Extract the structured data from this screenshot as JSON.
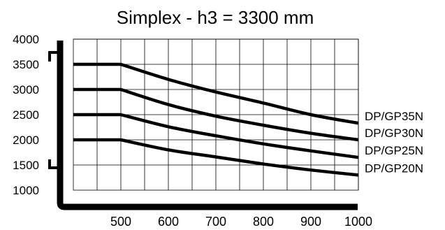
{
  "chart_data": {
    "type": "line",
    "title": "Simplex - h3 = 3300 mm",
    "xlabel": "",
    "ylabel": "",
    "x_ticks": [
      500,
      600,
      700,
      800,
      900,
      1000
    ],
    "y_ticks": [
      1000,
      1500,
      2000,
      2500,
      3000,
      3500,
      4000
    ],
    "xlim": [
      400,
      1000
    ],
    "ylim": [
      1000,
      4000
    ],
    "grid": true,
    "legend": "right",
    "series": [
      {
        "name": "DP/GP35N",
        "x": [
          400,
          500,
          600,
          700,
          800,
          900,
          1000
        ],
        "y": [
          3500,
          3500,
          3200,
          2950,
          2730,
          2500,
          2330
        ]
      },
      {
        "name": "DP/GP30N",
        "x": [
          400,
          500,
          600,
          700,
          800,
          900,
          1000
        ],
        "y": [
          3000,
          3000,
          2700,
          2470,
          2290,
          2130,
          2000
        ]
      },
      {
        "name": "DP/GP25N",
        "x": [
          400,
          500,
          600,
          700,
          800,
          900,
          1000
        ],
        "y": [
          2500,
          2500,
          2260,
          2080,
          1920,
          1780,
          1650
        ]
      },
      {
        "name": "DP/GP20N",
        "x": [
          400,
          500,
          600,
          700,
          800,
          900,
          1000
        ],
        "y": [
          2000,
          2000,
          1800,
          1660,
          1520,
          1400,
          1300
        ]
      }
    ],
    "colors": {
      "line": "#000000",
      "grid": "#000000",
      "background": "#ffffff"
    }
  }
}
